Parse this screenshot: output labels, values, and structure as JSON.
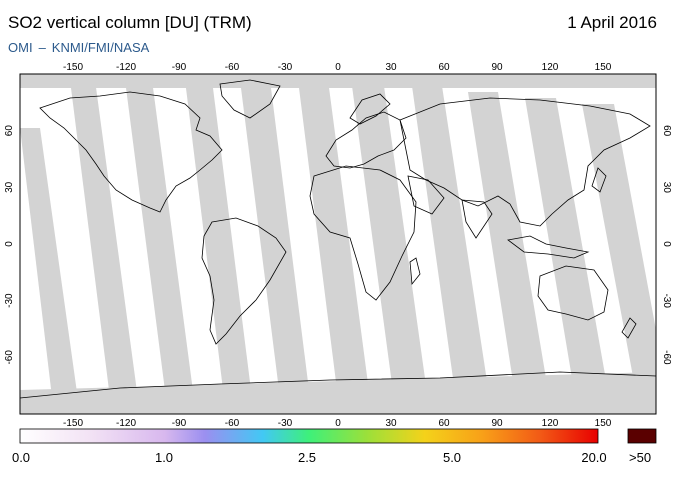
{
  "header": {
    "title": "SO2 vertical column [DU] (TRM)",
    "date": "1 April 2016",
    "source_left": "OMI",
    "source_sep": "–",
    "source_right": "KNMI/FMI/NASA"
  },
  "map": {
    "lon_ticks": [
      "-150",
      "-120",
      "-90",
      "-60",
      "-30",
      "0",
      "30",
      "60",
      "90",
      "120",
      "150"
    ],
    "lat_ticks": [
      "60",
      "30",
      "0",
      "-30",
      "-60"
    ],
    "colors": {
      "ocean": "#ffffff",
      "no_data_swath": "#d3d3d3",
      "no_data_dark": "#a9a9a9",
      "coastline": "#000000",
      "frame": "#000000"
    }
  },
  "colorbar": {
    "labels": [
      "0.0",
      "1.0",
      "2.5",
      "5.0",
      "20.0"
    ],
    "over_label": ">50",
    "over_color": "#5a0000",
    "gradient_colors": [
      "#ffffff",
      "#f3e3f5",
      "#d8b8ee",
      "#9b8ff0",
      "#42c8f4",
      "#3ef07a",
      "#9be03a",
      "#f4d21a",
      "#f8a018",
      "#f25a16",
      "#e80000"
    ]
  }
}
